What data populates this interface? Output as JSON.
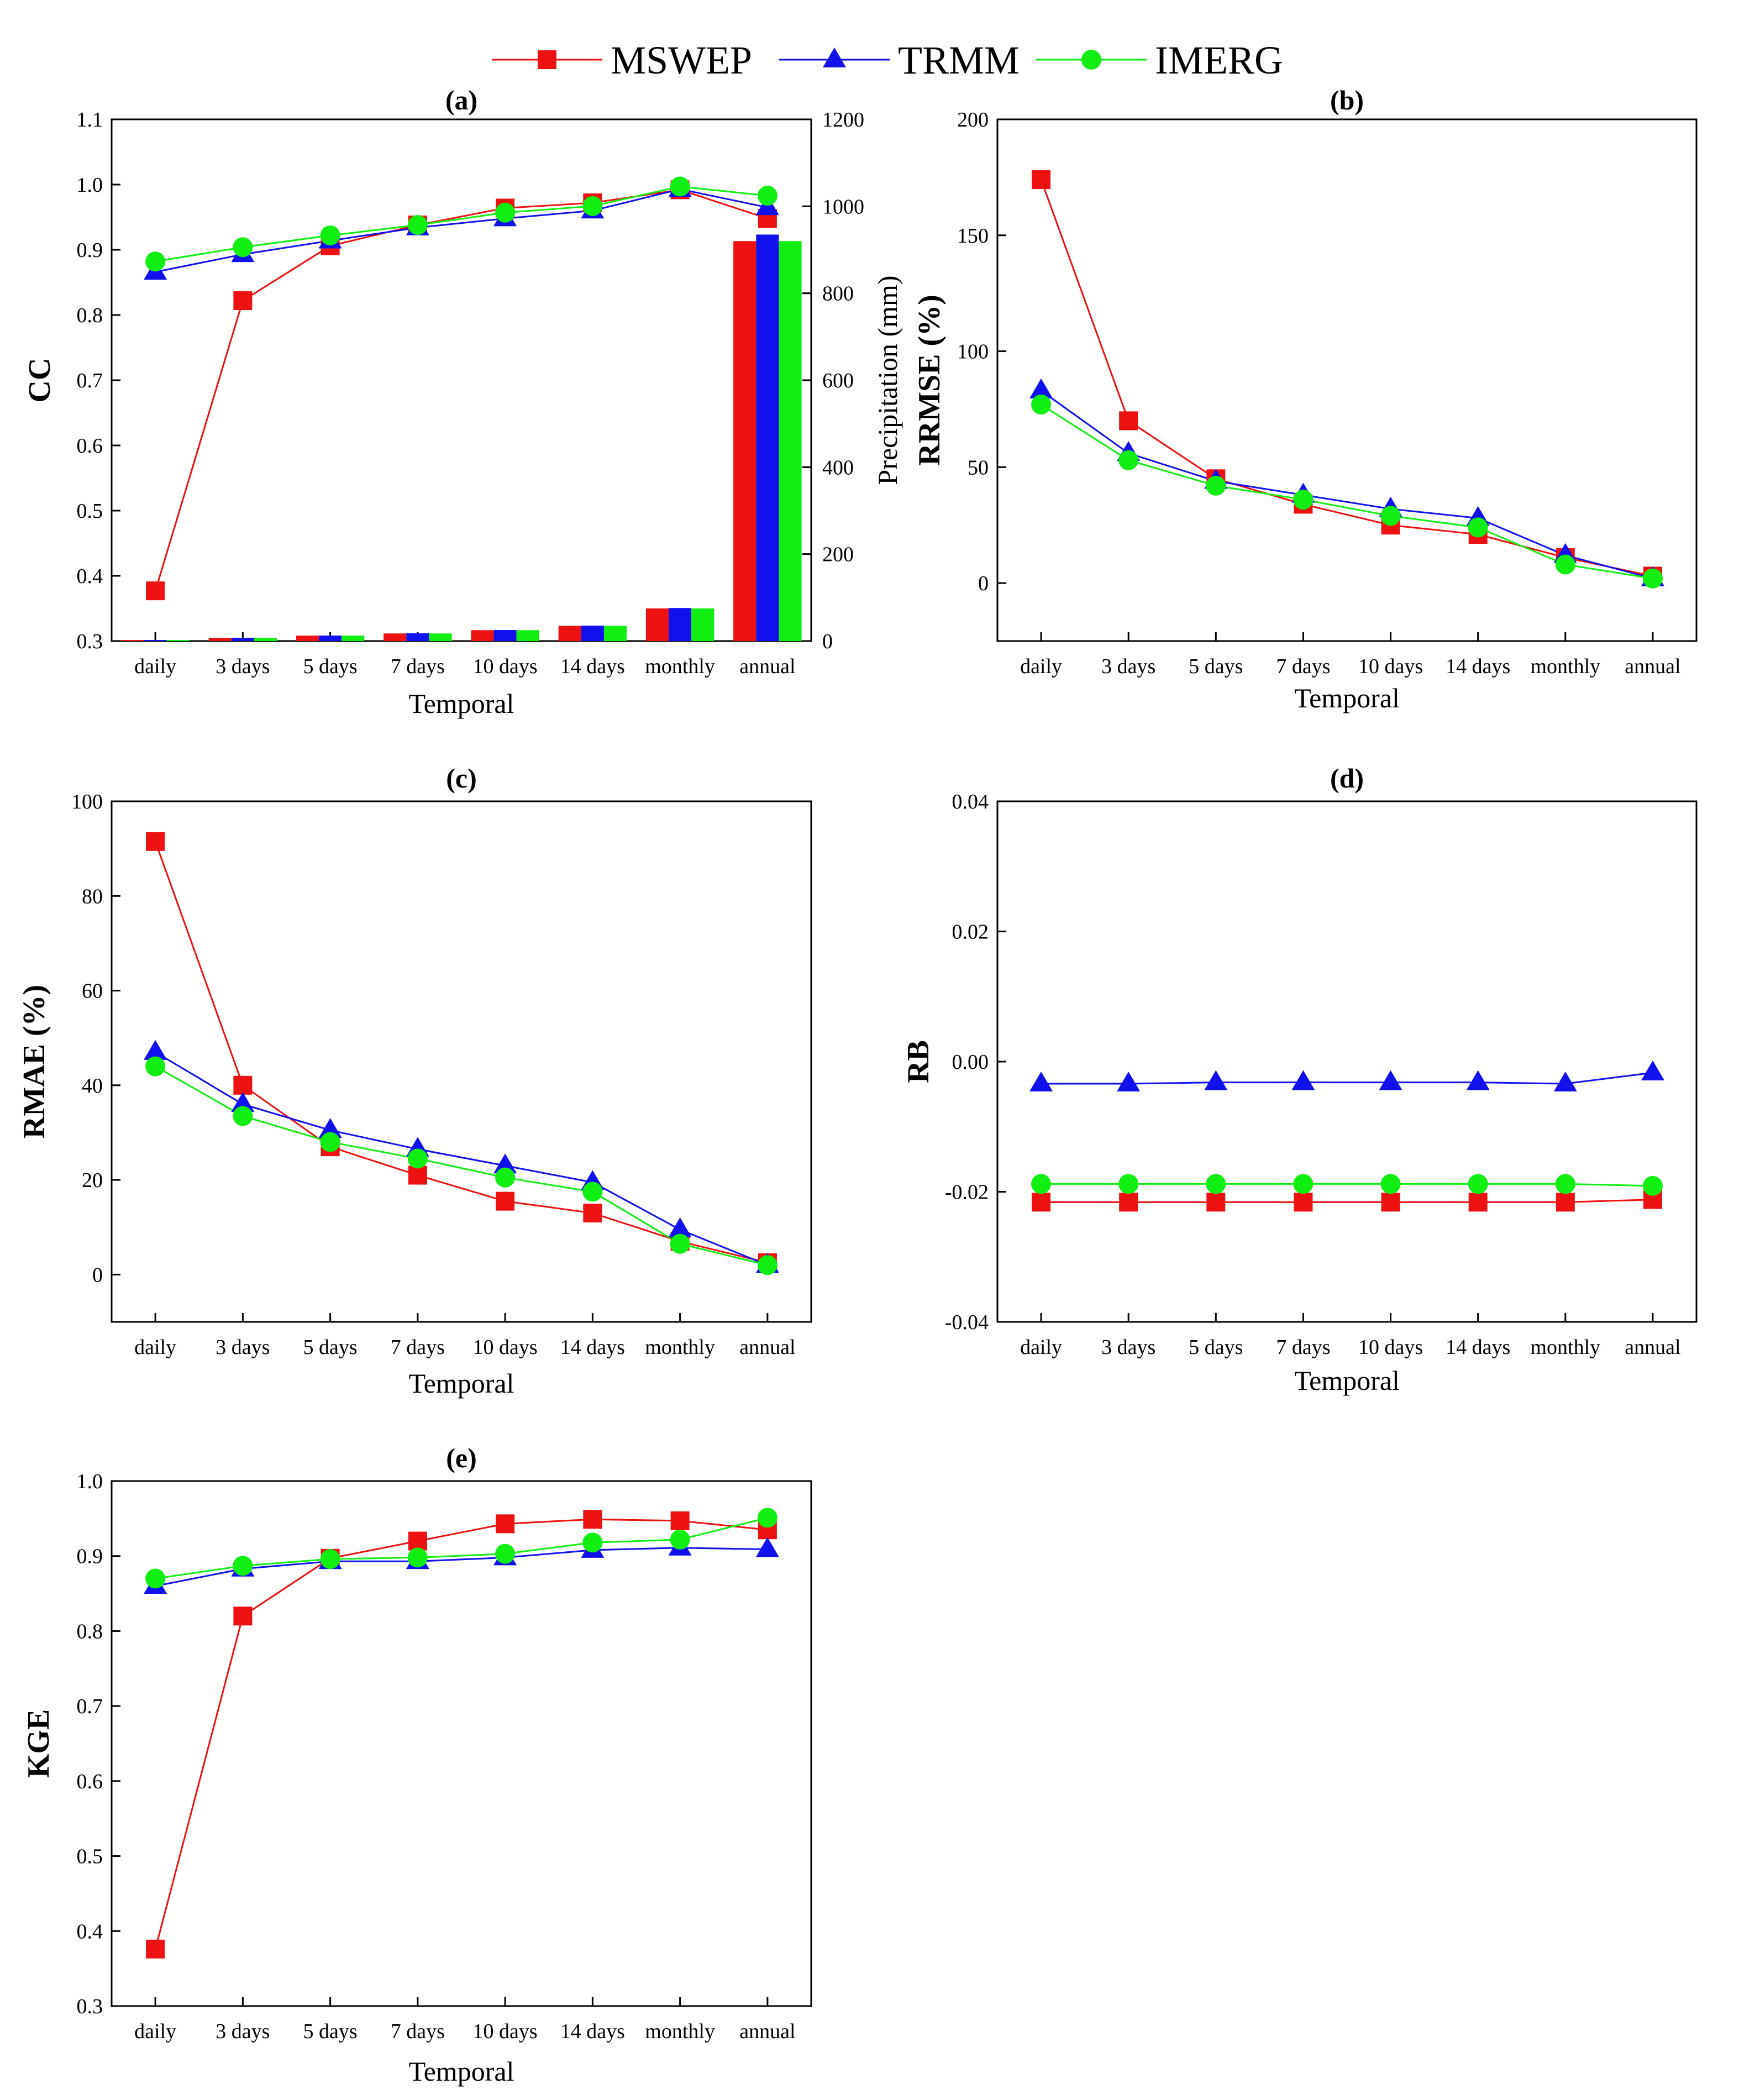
{
  "legend": [
    {
      "name": "MSWEP",
      "color": "#ee1111",
      "marker": "square"
    },
    {
      "name": "TRMM",
      "color": "#1111ee",
      "marker": "triangle"
    },
    {
      "name": "IMERG",
      "color": "#11ee11",
      "marker": "circle"
    }
  ],
  "chart_data": [
    {
      "id": "a",
      "type": "line",
      "title": "(a)",
      "categories": [
        "daily",
        "3 days",
        "5 days",
        "7 days",
        "10 days",
        "14 days",
        "monthly",
        "annual"
      ],
      "xlabel": "Temporal",
      "ylabel": "CC",
      "ylabel_bold": true,
      "ylim": [
        0.3,
        1.1
      ],
      "yticks": [
        "0.3",
        "0.4",
        "0.5",
        "0.6",
        "0.7",
        "0.8",
        "0.9",
        "1.0",
        "1.1"
      ],
      "series": [
        {
          "name": "MSWEP",
          "values": [
            0.377,
            0.822,
            0.906,
            0.938,
            0.964,
            0.972,
            0.992,
            0.948
          ]
        },
        {
          "name": "TRMM",
          "values": [
            0.866,
            0.893,
            0.914,
            0.934,
            0.948,
            0.96,
            0.993,
            0.965
          ]
        },
        {
          "name": "IMERG",
          "values": [
            0.882,
            0.904,
            0.922,
            0.938,
            0.957,
            0.967,
            0.997,
            0.983
          ]
        }
      ],
      "secondary_axis": {
        "type": "bar",
        "ylabel": "Precipitation (mm)",
        "ylim": [
          0,
          1200
        ],
        "yticks": [
          "0",
          "200",
          "400",
          "600",
          "800",
          "1000",
          "1200"
        ],
        "series": [
          {
            "name": "MSWEP",
            "values": [
              2.5,
              7.5,
              12.5,
              17.5,
              25,
              35,
              75,
              920
            ]
          },
          {
            "name": "TRMM",
            "values": [
              2.5,
              7.6,
              12.7,
              17.8,
              25.4,
              35.5,
              76,
              935
            ]
          },
          {
            "name": "IMERG",
            "values": [
              2.5,
              7.5,
              12.5,
              17.5,
              25,
              35,
              75,
              920
            ]
          }
        ]
      }
    },
    {
      "id": "b",
      "type": "line",
      "title": "(b)",
      "categories": [
        "daily",
        "3 days",
        "5 days",
        "7 days",
        "10 days",
        "14 days",
        "monthly",
        "annual"
      ],
      "xlabel": "Temporal",
      "ylabel": "RRMSE (%)",
      "ylabel_bold": true,
      "ylim": [
        -25,
        200
      ],
      "yticks": [
        "0",
        "50",
        "100",
        "150",
        "200"
      ],
      "ytick_values": [
        0,
        50,
        100,
        150,
        200
      ],
      "series": [
        {
          "name": "MSWEP",
          "values": [
            174,
            70,
            45,
            34,
            25,
            21,
            11,
            3
          ]
        },
        {
          "name": "TRMM",
          "values": [
            83,
            56,
            44,
            38,
            32,
            28,
            12,
            2
          ]
        },
        {
          "name": "IMERG",
          "values": [
            77,
            53,
            42,
            36,
            29,
            24,
            8,
            2
          ]
        }
      ]
    },
    {
      "id": "c",
      "type": "line",
      "title": "(c)",
      "categories": [
        "daily",
        "3 days",
        "5 days",
        "7 days",
        "10 days",
        "14 days",
        "monthly",
        "annual"
      ],
      "xlabel": "Temporal",
      "ylabel": "RMAE (%)",
      "ylabel_bold": true,
      "ylim": [
        -10,
        100
      ],
      "yticks": [
        "0",
        "20",
        "40",
        "60",
        "80",
        "100"
      ],
      "ytick_values": [
        0,
        20,
        40,
        60,
        80,
        100
      ],
      "series": [
        {
          "name": "MSWEP",
          "values": [
            91.5,
            40,
            27,
            21,
            15.5,
            13,
            7,
            2.5
          ]
        },
        {
          "name": "TRMM",
          "values": [
            47,
            36,
            30.5,
            26.5,
            23,
            19.5,
            9.5,
            2
          ]
        },
        {
          "name": "IMERG",
          "values": [
            44,
            33.5,
            28,
            24.5,
            20.5,
            17.5,
            6.5,
            2
          ]
        }
      ]
    },
    {
      "id": "d",
      "type": "line",
      "title": "(d)",
      "categories": [
        "daily",
        "3 days",
        "5 days",
        "7 days",
        "10 days",
        "14 days",
        "monthly",
        "annual"
      ],
      "xlabel": "Temporal",
      "ylabel": "RB",
      "ylabel_bold": true,
      "ylim": [
        -0.04,
        0.04
      ],
      "yticks": [
        "-0.04",
        "-0.02",
        "0.00",
        "0.02",
        "0.04"
      ],
      "ytick_values": [
        -0.04,
        -0.02,
        0,
        0.02,
        0.04
      ],
      "series": [
        {
          "name": "MSWEP",
          "values": [
            -0.0216,
            -0.0216,
            -0.0216,
            -0.0216,
            -0.0216,
            -0.0216,
            -0.0216,
            -0.0212
          ]
        },
        {
          "name": "TRMM",
          "values": [
            -0.0034,
            -0.0034,
            -0.0032,
            -0.0032,
            -0.0032,
            -0.0032,
            -0.0034,
            -0.0017
          ]
        },
        {
          "name": "IMERG",
          "values": [
            -0.0188,
            -0.0188,
            -0.0188,
            -0.0188,
            -0.0188,
            -0.0188,
            -0.0188,
            -0.0191
          ]
        }
      ]
    },
    {
      "id": "e",
      "type": "line",
      "title": "(e)",
      "categories": [
        "daily",
        "3 days",
        "5 days",
        "7 days",
        "10 days",
        "14 days",
        "monthly",
        "annual"
      ],
      "xlabel": "Temporal",
      "ylabel": "KGE",
      "ylabel_bold": true,
      "ylim": [
        0.3,
        1.0
      ],
      "yticks": [
        "0.3",
        "0.4",
        "0.5",
        "0.6",
        "0.7",
        "0.8",
        "0.9",
        "1.0"
      ],
      "series": [
        {
          "name": "MSWEP",
          "values": [
            0.376,
            0.82,
            0.897,
            0.92,
            0.943,
            0.949,
            0.947,
            0.935
          ]
        },
        {
          "name": "TRMM",
          "values": [
            0.86,
            0.883,
            0.893,
            0.893,
            0.898,
            0.908,
            0.911,
            0.909
          ]
        },
        {
          "name": "IMERG",
          "values": [
            0.87,
            0.887,
            0.896,
            0.898,
            0.903,
            0.918,
            0.922,
            0.951
          ]
        }
      ]
    }
  ]
}
